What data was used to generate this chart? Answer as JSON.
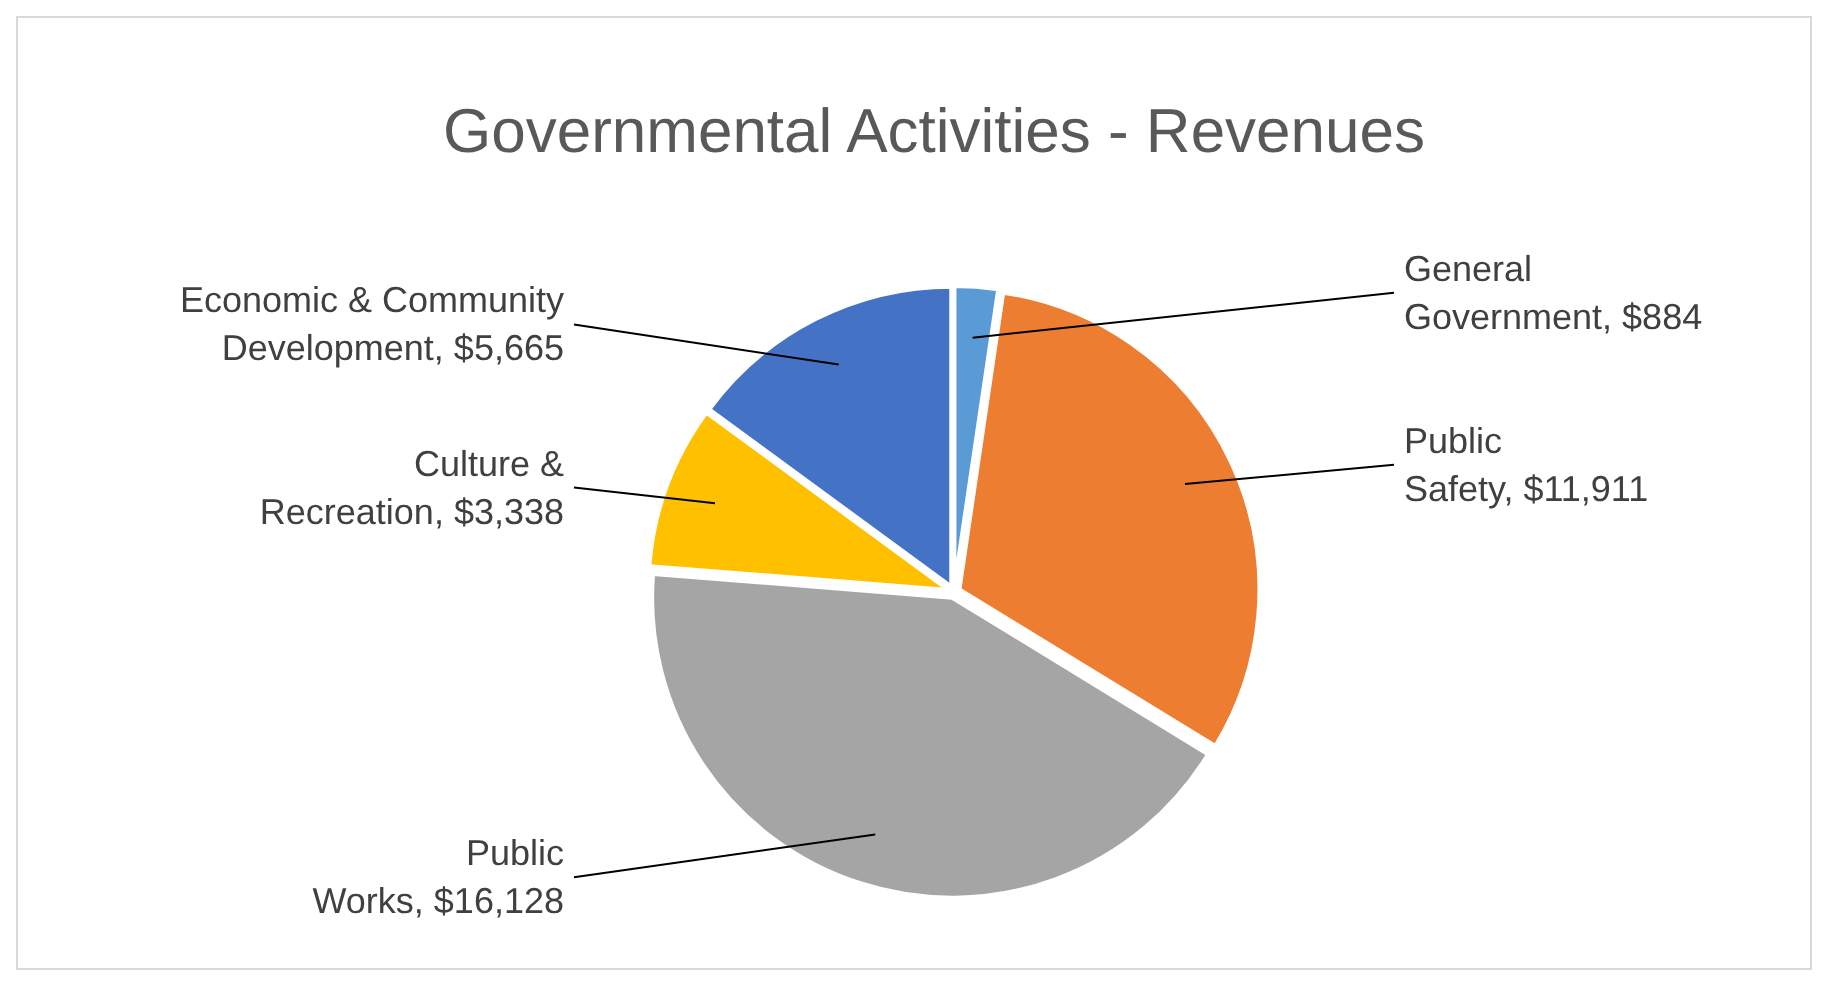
{
  "chart_data": {
    "type": "pie",
    "title": "Governmental Activities - Revenues",
    "categories": [
      "General Government",
      "Public Safety",
      "Public Works",
      "Culture & Recreation",
      "Economic & Community Development"
    ],
    "values": [
      884,
      11911,
      16128,
      3338,
      5665
    ],
    "value_labels": [
      "$884",
      "$11,911",
      "$16,128",
      "$3,338",
      "$5,665"
    ],
    "colors": [
      "#5b9bd5",
      "#ed7d31",
      "#a5a5a5",
      "#ffc000",
      "#4472c4"
    ],
    "legend": false
  }
}
